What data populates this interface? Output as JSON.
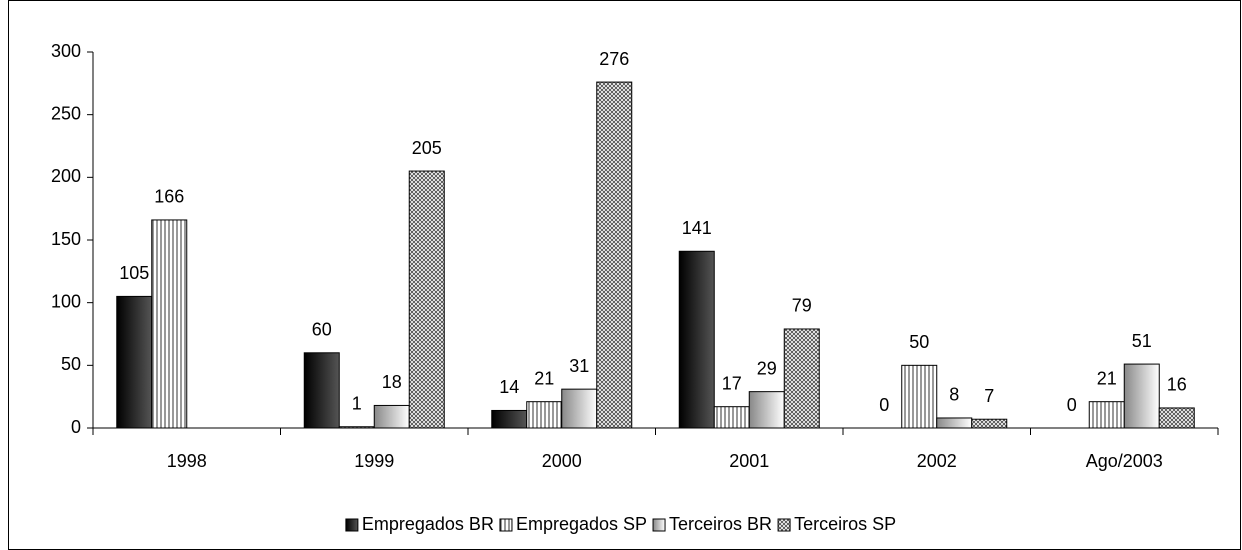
{
  "chart_data": {
    "type": "bar",
    "categories": [
      "1998",
      "1999",
      "2000",
      "2001",
      "2002",
      "Ago/2003"
    ],
    "series": [
      {
        "name": "Empregados BR",
        "color": "#555555",
        "values": [
          105,
          60,
          14,
          141,
          0,
          0
        ]
      },
      {
        "name": "Empregados SP",
        "color": "#333333",
        "values": [
          166,
          1,
          21,
          17,
          50,
          21
        ]
      },
      {
        "name": "Terceiros BR",
        "color": "#888888",
        "values": [
          null,
          18,
          31,
          29,
          8,
          51
        ]
      },
      {
        "name": "Terceiros SP",
        "color": "#444444",
        "values": [
          null,
          205,
          276,
          79,
          7,
          16
        ]
      }
    ],
    "ylim": [
      0,
      300
    ],
    "yticks": [
      0,
      50,
      100,
      150,
      200,
      250,
      300
    ],
    "legend": "bottom"
  }
}
